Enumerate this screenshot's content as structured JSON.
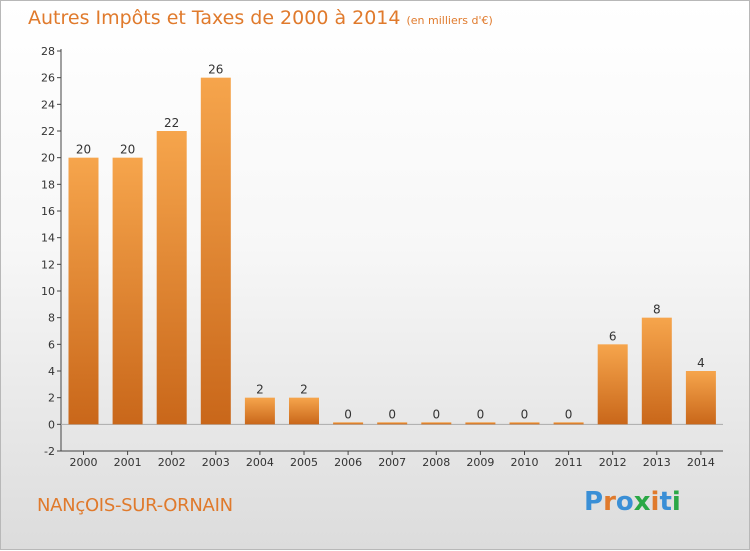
{
  "title": "Autres Impôts et Taxes de 2000 à 2014",
  "title_unit": "(en milliers d'€)",
  "commune": "NANçOIS-SUR-ORNAIN",
  "logo": {
    "letters": [
      "P",
      "r",
      "o",
      "x",
      "i",
      "t",
      "i"
    ],
    "colors": [
      "#3a8fd6",
      "#e07a2c",
      "#3a8fd6",
      "#2aa845",
      "#e07a2c",
      "#3a8fd6",
      "#2aa845"
    ]
  },
  "colors": {
    "bar_light": "#f6a54c",
    "bar_dark": "#c9671a",
    "accent": "#e07a2c",
    "axis": "#444444"
  },
  "chart_data": {
    "type": "bar",
    "categories": [
      "2000",
      "2001",
      "2002",
      "2003",
      "2004",
      "2005",
      "2006",
      "2007",
      "2008",
      "2009",
      "2010",
      "2011",
      "2012",
      "2013",
      "2014"
    ],
    "values": [
      20,
      20,
      22,
      26,
      2,
      2,
      0,
      0,
      0,
      0,
      0,
      0,
      6,
      8,
      4
    ],
    "ylim": [
      -2,
      28
    ],
    "yticks": [
      -2,
      0,
      2,
      4,
      6,
      8,
      10,
      12,
      14,
      16,
      18,
      20,
      22,
      24,
      26,
      28
    ],
    "grid": false
  }
}
